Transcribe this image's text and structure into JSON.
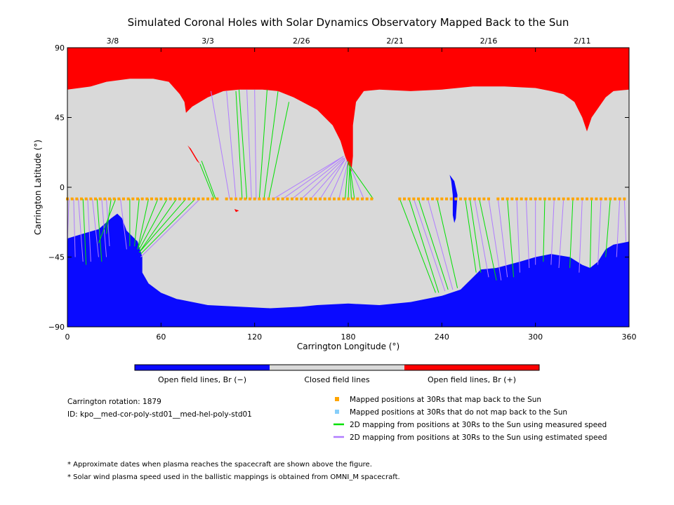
{
  "chart_data": {
    "type": "heatmap",
    "title": "Simulated Coronal Holes with Solar Dynamics Observatory Mapped Back to the Sun",
    "xlabel": "Carrington Longitude (°)",
    "ylabel": "Carrington Latitude (°)",
    "xlim": [
      0,
      360
    ],
    "ylim": [
      -90,
      90
    ],
    "x_ticks": [
      0,
      60,
      120,
      180,
      240,
      300,
      360
    ],
    "y_ticks": [
      90,
      45,
      0,
      -45,
      -90
    ],
    "top_axis_dates": [
      {
        "label": "3/8",
        "lon": 29
      },
      {
        "label": "3/3",
        "lon": 90
      },
      {
        "label": "2/26",
        "lon": 150
      },
      {
        "label": "2/21",
        "lon": 210
      },
      {
        "label": "2/16",
        "lon": 270
      },
      {
        "label": "2/11",
        "lon": 330
      }
    ],
    "colorbar": {
      "segments": [
        {
          "label": "Open field lines, Br (−)",
          "color": "#0a0aff"
        },
        {
          "label": "Closed field lines",
          "color": "#d9d9d9"
        },
        {
          "label": "Open field lines, Br (+)",
          "color": "#ff0000"
        }
      ]
    },
    "colors": {
      "open_negative": "#0a0aff",
      "closed": "#d9d9d9",
      "open_positive": "#ff0000",
      "mapped_back": "#ffa500",
      "not_mapped": "#87cefa",
      "measured_speed": "#00e000",
      "estimated_speed": "#b07cff"
    },
    "north_hole_boundary": [
      [
        0,
        63
      ],
      [
        15,
        65
      ],
      [
        25,
        68
      ],
      [
        40,
        70
      ],
      [
        55,
        70
      ],
      [
        65,
        68
      ],
      [
        72,
        60
      ],
      [
        75,
        55
      ],
      [
        76,
        48
      ],
      [
        80,
        52
      ],
      [
        90,
        58
      ],
      [
        100,
        62
      ],
      [
        110,
        63
      ],
      [
        125,
        63
      ],
      [
        135,
        62
      ],
      [
        145,
        58
      ],
      [
        160,
        50
      ],
      [
        170,
        40
      ],
      [
        175,
        30
      ],
      [
        178,
        20
      ],
      [
        180,
        15
      ],
      [
        182,
        10
      ],
      [
        183,
        20
      ],
      [
        183,
        40
      ],
      [
        185,
        55
      ],
      [
        190,
        62
      ],
      [
        200,
        63
      ],
      [
        220,
        62
      ],
      [
        240,
        63
      ],
      [
        260,
        65
      ],
      [
        280,
        65
      ],
      [
        300,
        64
      ],
      [
        310,
        62
      ],
      [
        318,
        60
      ],
      [
        325,
        55
      ],
      [
        330,
        45
      ],
      [
        333,
        36
      ],
      [
        336,
        45
      ],
      [
        345,
        58
      ],
      [
        350,
        62
      ],
      [
        360,
        63
      ]
    ],
    "south_hole_boundary": [
      [
        0,
        -33
      ],
      [
        10,
        -30
      ],
      [
        20,
        -27
      ],
      [
        28,
        -20
      ],
      [
        32,
        -17
      ],
      [
        35,
        -20
      ],
      [
        38,
        -28
      ],
      [
        45,
        -35
      ],
      [
        48,
        -45
      ],
      [
        48,
        -55
      ],
      [
        52,
        -62
      ],
      [
        60,
        -68
      ],
      [
        70,
        -72
      ],
      [
        90,
        -76
      ],
      [
        110,
        -77
      ],
      [
        130,
        -78
      ],
      [
        150,
        -77
      ],
      [
        160,
        -76
      ],
      [
        180,
        -75
      ],
      [
        200,
        -76
      ],
      [
        220,
        -74
      ],
      [
        240,
        -70
      ],
      [
        252,
        -66
      ],
      [
        260,
        -58
      ],
      [
        265,
        -53
      ],
      [
        275,
        -52
      ],
      [
        290,
        -48
      ],
      [
        300,
        -45
      ],
      [
        310,
        -43
      ],
      [
        322,
        -45
      ],
      [
        330,
        -50
      ],
      [
        335,
        -52
      ],
      [
        340,
        -48
      ],
      [
        345,
        -40
      ],
      [
        350,
        -37
      ],
      [
        360,
        -35
      ]
    ],
    "small_holes": [
      {
        "polarity": "+",
        "points": [
          [
            77,
            27
          ],
          [
            80,
            22
          ],
          [
            83,
            17
          ],
          [
            85,
            15
          ],
          [
            82,
            20
          ],
          [
            79,
            25
          ]
        ]
      },
      {
        "polarity": "+",
        "points": [
          [
            107,
            -14
          ],
          [
            110,
            -15
          ],
          [
            108,
            -16
          ]
        ]
      },
      {
        "polarity": "-",
        "points": [
          [
            245,
            8
          ],
          [
            248,
            4
          ],
          [
            250,
            -5
          ],
          [
            249,
            -20
          ],
          [
            248,
            -23
          ],
          [
            247,
            -18
          ],
          [
            247,
            -5
          ],
          [
            246,
            4
          ]
        ]
      },
      {
        "polarity": "-",
        "points": [
          [
            28,
            -47
          ],
          [
            33,
            -47
          ],
          [
            33,
            -48
          ],
          [
            28,
            -48
          ]
        ]
      }
    ],
    "mapped_points_lat": -7.5,
    "mapped_points_lon": [
      0,
      3,
      6,
      9,
      12,
      15,
      18,
      21,
      24,
      27,
      30,
      33,
      36,
      39,
      42,
      45,
      48,
      51,
      54,
      57,
      60,
      63,
      66,
      69,
      72,
      75,
      78,
      81,
      84,
      87,
      90,
      93,
      96,
      102,
      105,
      108,
      111,
      114,
      117,
      120,
      123,
      126,
      129,
      132,
      135,
      138,
      141,
      144,
      147,
      150,
      153,
      156,
      159,
      162,
      165,
      168,
      171,
      174,
      177,
      180,
      183,
      186,
      189,
      192,
      195,
      213,
      216,
      219,
      222,
      225,
      228,
      231,
      234,
      237,
      240,
      243,
      246,
      249,
      252,
      255,
      258,
      261,
      264,
      267,
      270,
      276,
      279,
      282,
      285,
      288,
      291,
      294,
      297,
      300,
      303,
      306,
      309,
      312,
      315,
      318,
      321,
      324,
      327,
      330,
      333,
      336,
      339,
      342,
      345,
      348,
      351,
      354,
      357
    ],
    "mapping_lines": [
      {
        "type": "estimated",
        "from": [
          1,
          -7.5
        ],
        "to": [
          0,
          -35
        ]
      },
      {
        "type": "estimated",
        "from": [
          4,
          -7.5
        ],
        "to": [
          5,
          -45
        ]
      },
      {
        "type": "estimated",
        "from": [
          7,
          -7.5
        ],
        "to": [
          10,
          -48
        ]
      },
      {
        "type": "measured",
        "from": [
          10,
          -7.5
        ],
        "to": [
          12,
          -50
        ]
      },
      {
        "type": "estimated",
        "from": [
          13,
          -7.5
        ],
        "to": [
          15,
          -48
        ]
      },
      {
        "type": "estimated",
        "from": [
          16,
          -7.5
        ],
        "to": [
          20,
          -45
        ]
      },
      {
        "type": "measured",
        "from": [
          19,
          -7.5
        ],
        "to": [
          22,
          -48
        ]
      },
      {
        "type": "estimated",
        "from": [
          22,
          -7.5
        ],
        "to": [
          25,
          -45
        ]
      },
      {
        "type": "estimated",
        "from": [
          25,
          -7.5
        ],
        "to": [
          27,
          -38
        ]
      },
      {
        "type": "measured",
        "from": [
          28,
          -7.5
        ],
        "to": [
          25,
          -30
        ]
      },
      {
        "type": "measured",
        "from": [
          31,
          -7.5
        ],
        "to": [
          20,
          -36
        ]
      },
      {
        "type": "estimated",
        "from": [
          34,
          -7.5
        ],
        "to": [
          38,
          -40
        ]
      },
      {
        "type": "measured",
        "from": [
          40,
          -7.5
        ],
        "to": [
          40,
          -38
        ]
      },
      {
        "type": "measured",
        "from": [
          46,
          -7.5
        ],
        "to": [
          43,
          -38
        ]
      },
      {
        "type": "measured",
        "from": [
          52,
          -7.5
        ],
        "to": [
          45,
          -40
        ]
      },
      {
        "type": "measured",
        "from": [
          58,
          -7.5
        ],
        "to": [
          45,
          -40
        ]
      },
      {
        "type": "measured",
        "from": [
          64,
          -7.5
        ],
        "to": [
          46,
          -40
        ]
      },
      {
        "type": "measured",
        "from": [
          70,
          -7.5
        ],
        "to": [
          46,
          -42
        ]
      },
      {
        "type": "measured",
        "from": [
          76,
          -7.5
        ],
        "to": [
          46,
          -42
        ]
      },
      {
        "type": "measured",
        "from": [
          82,
          -7.5
        ],
        "to": [
          47,
          -43
        ]
      },
      {
        "type": "estimated",
        "from": [
          85,
          -7.5
        ],
        "to": [
          47,
          -45
        ]
      },
      {
        "type": "measured",
        "from": [
          94,
          -7.5
        ],
        "to": [
          85,
          15
        ]
      },
      {
        "type": "measured",
        "from": [
          95,
          -7.5
        ],
        "to": [
          86,
          17
        ]
      },
      {
        "type": "estimated",
        "from": [
          104,
          -7.5
        ],
        "to": [
          92,
          62
        ]
      },
      {
        "type": "estimated",
        "from": [
          108,
          -7.5
        ],
        "to": [
          102,
          62
        ]
      },
      {
        "type": "measured",
        "from": [
          112,
          -7.5
        ],
        "to": [
          108,
          62
        ]
      },
      {
        "type": "measured",
        "from": [
          115,
          -7.5
        ],
        "to": [
          110,
          63
        ]
      },
      {
        "type": "estimated",
        "from": [
          118,
          -7.5
        ],
        "to": [
          115,
          63
        ]
      },
      {
        "type": "estimated",
        "from": [
          121,
          -7.5
        ],
        "to": [
          120,
          63
        ]
      },
      {
        "type": "measured",
        "from": [
          123,
          -7.5
        ],
        "to": [
          128,
          63
        ]
      },
      {
        "type": "measured",
        "from": [
          126,
          -7.5
        ],
        "to": [
          135,
          62
        ]
      },
      {
        "type": "measured",
        "from": [
          129,
          -7.5
        ],
        "to": [
          142,
          55
        ]
      },
      {
        "type": "estimated",
        "from": [
          132,
          -7.5
        ],
        "to": [
          177,
          20
        ]
      },
      {
        "type": "estimated",
        "from": [
          138,
          -7.5
        ],
        "to": [
          177,
          20
        ]
      },
      {
        "type": "estimated",
        "from": [
          144,
          -7.5
        ],
        "to": [
          177,
          19
        ]
      },
      {
        "type": "estimated",
        "from": [
          150,
          -7.5
        ],
        "to": [
          178,
          19
        ]
      },
      {
        "type": "estimated",
        "from": [
          156,
          -7.5
        ],
        "to": [
          178,
          18
        ]
      },
      {
        "type": "estimated",
        "from": [
          162,
          -7.5
        ],
        "to": [
          178,
          18
        ]
      },
      {
        "type": "estimated",
        "from": [
          168,
          -7.5
        ],
        "to": [
          179,
          17
        ]
      },
      {
        "type": "estimated",
        "from": [
          174,
          -7.5
        ],
        "to": [
          180,
          17
        ]
      },
      {
        "type": "measured",
        "from": [
          178,
          -7.5
        ],
        "to": [
          180,
          17
        ]
      },
      {
        "type": "measured",
        "from": [
          180,
          -7.5
        ],
        "to": [
          181,
          16
        ]
      },
      {
        "type": "measured",
        "from": [
          182,
          -7.5
        ],
        "to": [
          181,
          15
        ]
      },
      {
        "type": "measured",
        "from": [
          184,
          -7.5
        ],
        "to": [
          181,
          14
        ]
      },
      {
        "type": "estimated",
        "from": [
          190,
          -7.5
        ],
        "to": [
          181,
          14
        ]
      },
      {
        "type": "measured",
        "from": [
          196,
          -7.5
        ],
        "to": [
          181,
          14
        ]
      },
      {
        "type": "measured",
        "from": [
          213,
          -7.5
        ],
        "to": [
          236,
          -68
        ]
      },
      {
        "type": "measured",
        "from": [
          219,
          -7.5
        ],
        "to": [
          238,
          -68
        ]
      },
      {
        "type": "estimated",
        "from": [
          222,
          -7.5
        ],
        "to": [
          242,
          -67
        ]
      },
      {
        "type": "measured",
        "from": [
          225,
          -7.5
        ],
        "to": [
          244,
          -66
        ]
      },
      {
        "type": "estimated",
        "from": [
          231,
          -7.5
        ],
        "to": [
          247,
          -66
        ]
      },
      {
        "type": "measured",
        "from": [
          237,
          -7.5
        ],
        "to": [
          250,
          -65
        ]
      },
      {
        "type": "measured",
        "from": [
          255,
          -7.5
        ],
        "to": [
          262,
          -55
        ]
      },
      {
        "type": "measured",
        "from": [
          258,
          -7.5
        ],
        "to": [
          265,
          -55
        ]
      },
      {
        "type": "estimated",
        "from": [
          261,
          -7.5
        ],
        "to": [
          270,
          -58
        ]
      },
      {
        "type": "measured",
        "from": [
          264,
          -7.5
        ],
        "to": [
          275,
          -60
        ]
      },
      {
        "type": "estimated",
        "from": [
          270,
          -7.5
        ],
        "to": [
          278,
          -60
        ]
      },
      {
        "type": "estimated",
        "from": [
          276,
          -7.5
        ],
        "to": [
          282,
          -58
        ]
      },
      {
        "type": "measured",
        "from": [
          282,
          -7.5
        ],
        "to": [
          286,
          -58
        ]
      },
      {
        "type": "estimated",
        "from": [
          288,
          -7.5
        ],
        "to": [
          290,
          -55
        ]
      },
      {
        "type": "estimated",
        "from": [
          294,
          -7.5
        ],
        "to": [
          296,
          -52
        ]
      },
      {
        "type": "estimated",
        "from": [
          300,
          -7.5
        ],
        "to": [
          300,
          -50
        ]
      },
      {
        "type": "measured",
        "from": [
          306,
          -7.5
        ],
        "to": [
          305,
          -48
        ]
      },
      {
        "type": "estimated",
        "from": [
          312,
          -7.5
        ],
        "to": [
          310,
          -50
        ]
      },
      {
        "type": "estimated",
        "from": [
          318,
          -7.5
        ],
        "to": [
          315,
          -52
        ]
      },
      {
        "type": "measured",
        "from": [
          324,
          -7.5
        ],
        "to": [
          322,
          -52
        ]
      },
      {
        "type": "estimated",
        "from": [
          330,
          -7.5
        ],
        "to": [
          328,
          -55
        ]
      },
      {
        "type": "measured",
        "from": [
          336,
          -7.5
        ],
        "to": [
          335,
          -52
        ]
      },
      {
        "type": "estimated",
        "from": [
          342,
          -7.5
        ],
        "to": [
          340,
          -50
        ]
      },
      {
        "type": "measured",
        "from": [
          348,
          -7.5
        ],
        "to": [
          345,
          -45
        ]
      },
      {
        "type": "estimated",
        "from": [
          354,
          -7.5
        ],
        "to": [
          352,
          -45
        ]
      },
      {
        "type": "estimated",
        "from": [
          357,
          -7.5
        ],
        "to": [
          358,
          -35
        ]
      }
    ]
  },
  "info": {
    "rotation": "Carrington rotation: 1879",
    "id": "ID: kpo__med-cor-poly-std01__med-hel-poly-std01"
  },
  "legend": [
    {
      "label": "Mapped positions at 30Rs that map back to the Sun",
      "kind": "square",
      "color": "#ffa500"
    },
    {
      "label": "Mapped positions at 30Rs that do not map back to the Sun",
      "kind": "square",
      "color": "#87cefa"
    },
    {
      "label": "2D mapping from positions at 30Rs to the Sun using measured speed",
      "kind": "line",
      "color": "#00e000"
    },
    {
      "label": "2D mapping from positions at 30Rs to the Sun using estimated speed",
      "kind": "line",
      "color": "#b07cff"
    }
  ],
  "footnotes": [
    "* Approximate dates when plasma reaches the spacecraft are shown above the figure.",
    "* Solar wind plasma speed used in the ballistic mappings is obtained from OMNI_M spacecraft."
  ]
}
